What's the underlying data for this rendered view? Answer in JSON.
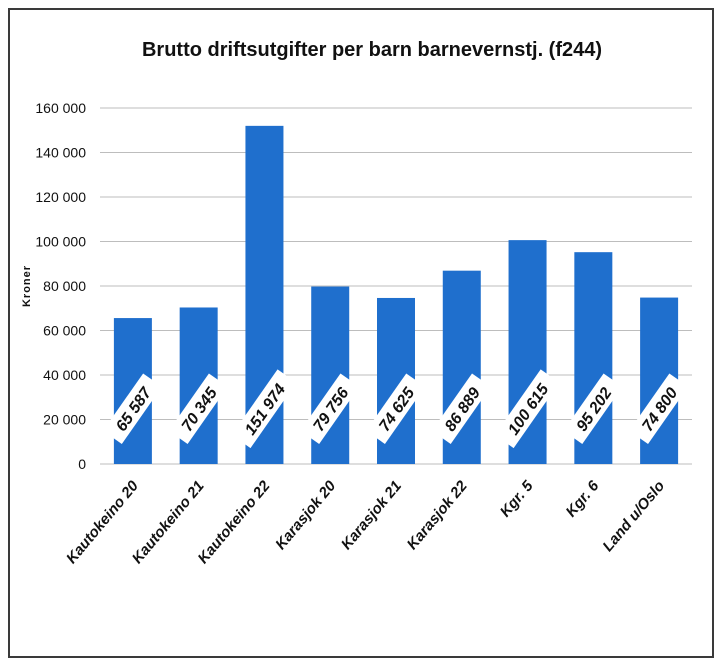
{
  "chart_data": {
    "type": "bar",
    "title": "Brutto driftsutgifter per barn barnevernstj. (f244)",
    "ylabel": "Kroner",
    "xlabel": "",
    "ylim": [
      0,
      160000
    ],
    "yticks": [
      0,
      20000,
      40000,
      60000,
      80000,
      100000,
      120000,
      140000,
      160000
    ],
    "ytick_labels": [
      "0",
      "20 000",
      "40 000",
      "60 000",
      "80 000",
      "100 000",
      "120 000",
      "140 000",
      "160 000"
    ],
    "grid": true,
    "bar_color": "#1f6fcd",
    "categories": [
      "Kautokeino 20",
      "Kautokeino 21",
      "Kautokeino 22",
      "Karasjok 20",
      "Karasjok 21",
      "Karasjok 22",
      "Kgr. 5",
      "Kgr. 6",
      "Land u/Oslo"
    ],
    "values": [
      65587,
      70345,
      151974,
      79756,
      74625,
      86889,
      100615,
      95202,
      74800
    ],
    "data_labels": [
      "65 587",
      "70 345",
      "151 974",
      "79 756",
      "74 625",
      "86 889",
      "100 615",
      "95 202",
      "74 800"
    ]
  }
}
